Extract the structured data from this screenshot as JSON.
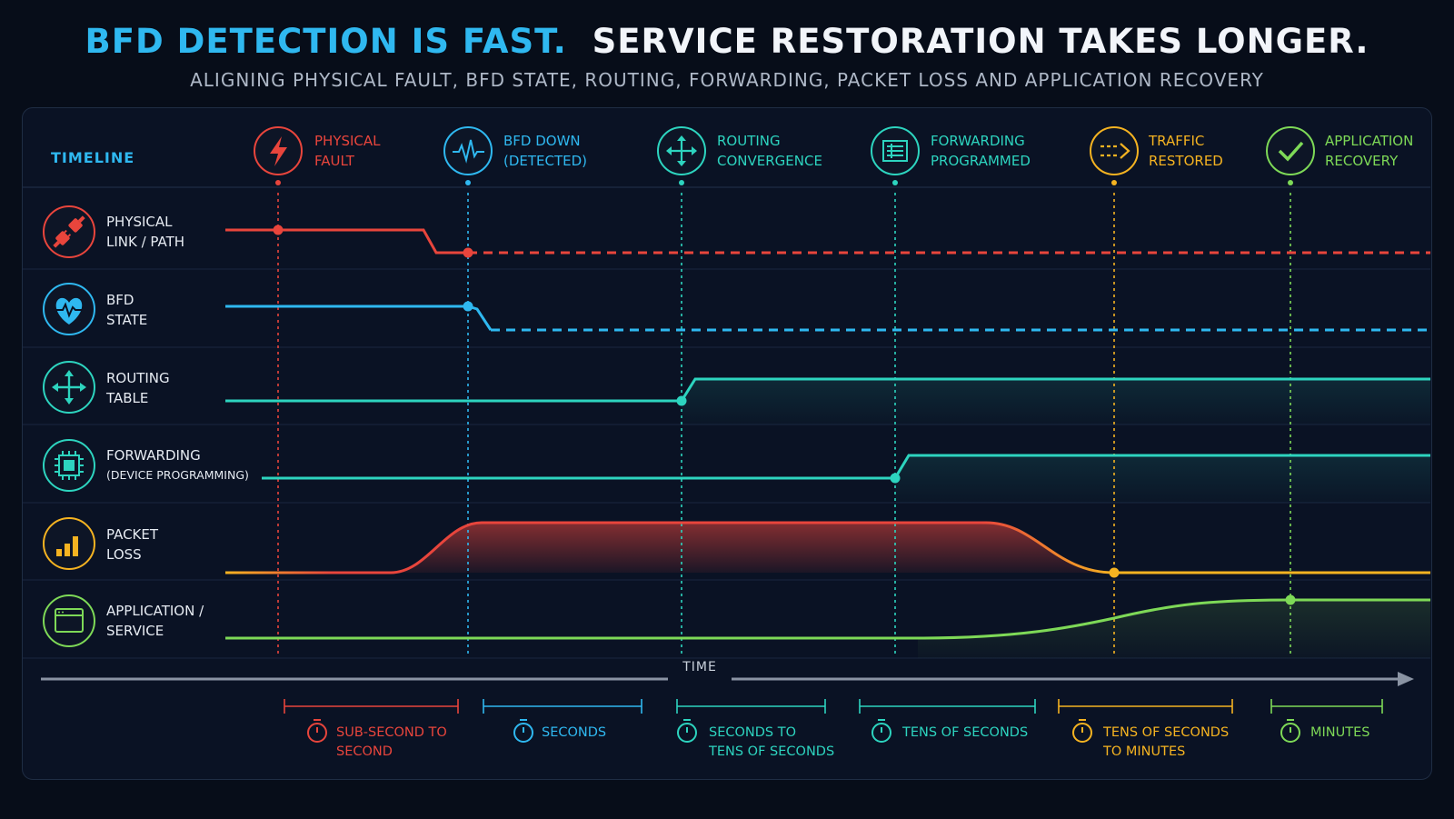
{
  "header": {
    "title_accent": "BFD DETECTION IS FAST.",
    "title_rest": "SERVICE RESTORATION TAKES LONGER.",
    "subtitle": "ALIGNING PHYSICAL FAULT, BFD STATE, ROUTING, FORWARDING, PACKET LOSS AND APPLICATION RECOVERY"
  },
  "timeline_label": "TIMELINE",
  "events": [
    {
      "line1": "PHYSICAL",
      "line2": "FAULT",
      "color": "#e8453c",
      "icon": "lightning-icon"
    },
    {
      "line1": "BFD DOWN",
      "line2": "(DETECTED)",
      "color": "#2fb8f0",
      "icon": "heartbeat-icon"
    },
    {
      "line1": "ROUTING",
      "line2": "CONVERGENCE",
      "color": "#2dd4bf",
      "icon": "arrows-move-icon"
    },
    {
      "line1": "FORWARDING",
      "line2": "PROGRAMMED",
      "color": "#2dd4bf",
      "icon": "table-icon"
    },
    {
      "line1": "TRAFFIC",
      "line2": "RESTORED",
      "color": "#f5b321",
      "icon": "dashed-arrow-icon"
    },
    {
      "line1": "APPLICATION",
      "line2": "RECOVERY",
      "color": "#7ed957",
      "icon": "checkmark-icon"
    }
  ],
  "rows": [
    {
      "line1": "PHYSICAL",
      "line2": "LINK / PATH",
      "color": "#e8453c",
      "icon": "plug-disconnect-icon"
    },
    {
      "line1": "BFD",
      "line2": "STATE",
      "color": "#2fb8f0",
      "icon": "heart-pulse-icon"
    },
    {
      "line1": "ROUTING",
      "line2": "TABLE",
      "color": "#2dd4bf",
      "icon": "arrows-move-icon"
    },
    {
      "line1": "FORWARDING",
      "line2": "(DEVICE PROGRAMMING)",
      "color": "#2dd4bf",
      "icon": "chip-icon"
    },
    {
      "line1": "PACKET",
      "line2": "LOSS",
      "color": "#f5b321",
      "icon": "bar-chart-icon"
    },
    {
      "line1": "APPLICATION /",
      "line2": "SERVICE",
      "color": "#7ed957",
      "icon": "window-icon"
    }
  ],
  "time_axis_label": "TIME",
  "durations": [
    {
      "line1": "SUB-SECOND TO",
      "line2": "SECOND",
      "color": "#e8453c"
    },
    {
      "line1": "SECONDS",
      "line2": "",
      "color": "#2fb8f0"
    },
    {
      "line1": "SECONDS TO",
      "line2": "TENS OF SECONDS",
      "color": "#2dd4bf"
    },
    {
      "line1": "TENS OF SECONDS",
      "line2": "",
      "color": "#2dd4bf"
    },
    {
      "line1": "TENS OF SECONDS",
      "line2": "TO MINUTES",
      "color": "#f5b321"
    },
    {
      "line1": "MINUTES",
      "line2": "",
      "color": "#7ed957"
    }
  ]
}
